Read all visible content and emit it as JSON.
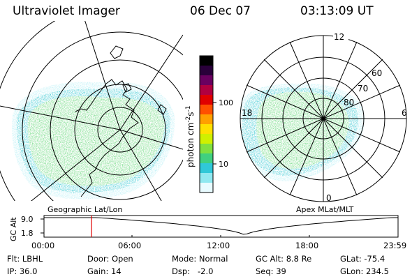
{
  "header": {
    "title": "Ultraviolet Imager",
    "date": "06 Dec 07",
    "time": "03:13:09 UT"
  },
  "colorbar": {
    "label_parts": [
      "photon cm",
      "-2",
      "s",
      "-1"
    ],
    "ticks": [
      {
        "label": "100",
        "value": 100
      },
      {
        "label": "10",
        "value": 10
      }
    ],
    "colors": [
      "#000000",
      "#2a003a",
      "#6a0060",
      "#b00040",
      "#e00000",
      "#ff5000",
      "#ffa000",
      "#ffe000",
      "#d0f000",
      "#80e040",
      "#40d080",
      "#30c8d8",
      "#90e8f0",
      "#e8fbff"
    ]
  },
  "left_map": {
    "caption": "Geographic Lat/Lon",
    "aurora_colors": {
      "main": "#66d87a",
      "edge": "#34c8d2",
      "light": "#a8ecf4"
    }
  },
  "right_map": {
    "caption": "Apex MLat/MLT",
    "mlt_labels": {
      "top": "12",
      "left": "18",
      "right": "6",
      "bottom": "0"
    },
    "lat_labels": [
      "60",
      "70",
      "80"
    ]
  },
  "altitude_plot": {
    "ylabel": "GC Alt",
    "ytick_labels": [
      "9.0",
      "1.8"
    ],
    "xtick_labels": [
      "00:00",
      "06:00",
      "12:00",
      "18:00",
      "23:59"
    ],
    "current_time_hours": 3.22,
    "marker_color": "#e00000"
  },
  "footer": {
    "row1": [
      {
        "label": "Flt:",
        "value": "LBHL"
      },
      {
        "label": "Door:",
        "value": "Open"
      },
      {
        "label": "Mode:",
        "value": "Normal"
      },
      {
        "label": "GC Alt:",
        "value": "8.8 Re"
      },
      {
        "label": "GLat:",
        "value": "-75.4"
      }
    ],
    "row2": [
      {
        "label": "IP:",
        "value": "36.0"
      },
      {
        "label": "Gain:",
        "value": "14"
      },
      {
        "label": "Dsp:",
        "value": "-2.0"
      },
      {
        "label": "Seq:",
        "value": "39"
      },
      {
        "label": "GLon:",
        "value": "234.5"
      }
    ]
  }
}
